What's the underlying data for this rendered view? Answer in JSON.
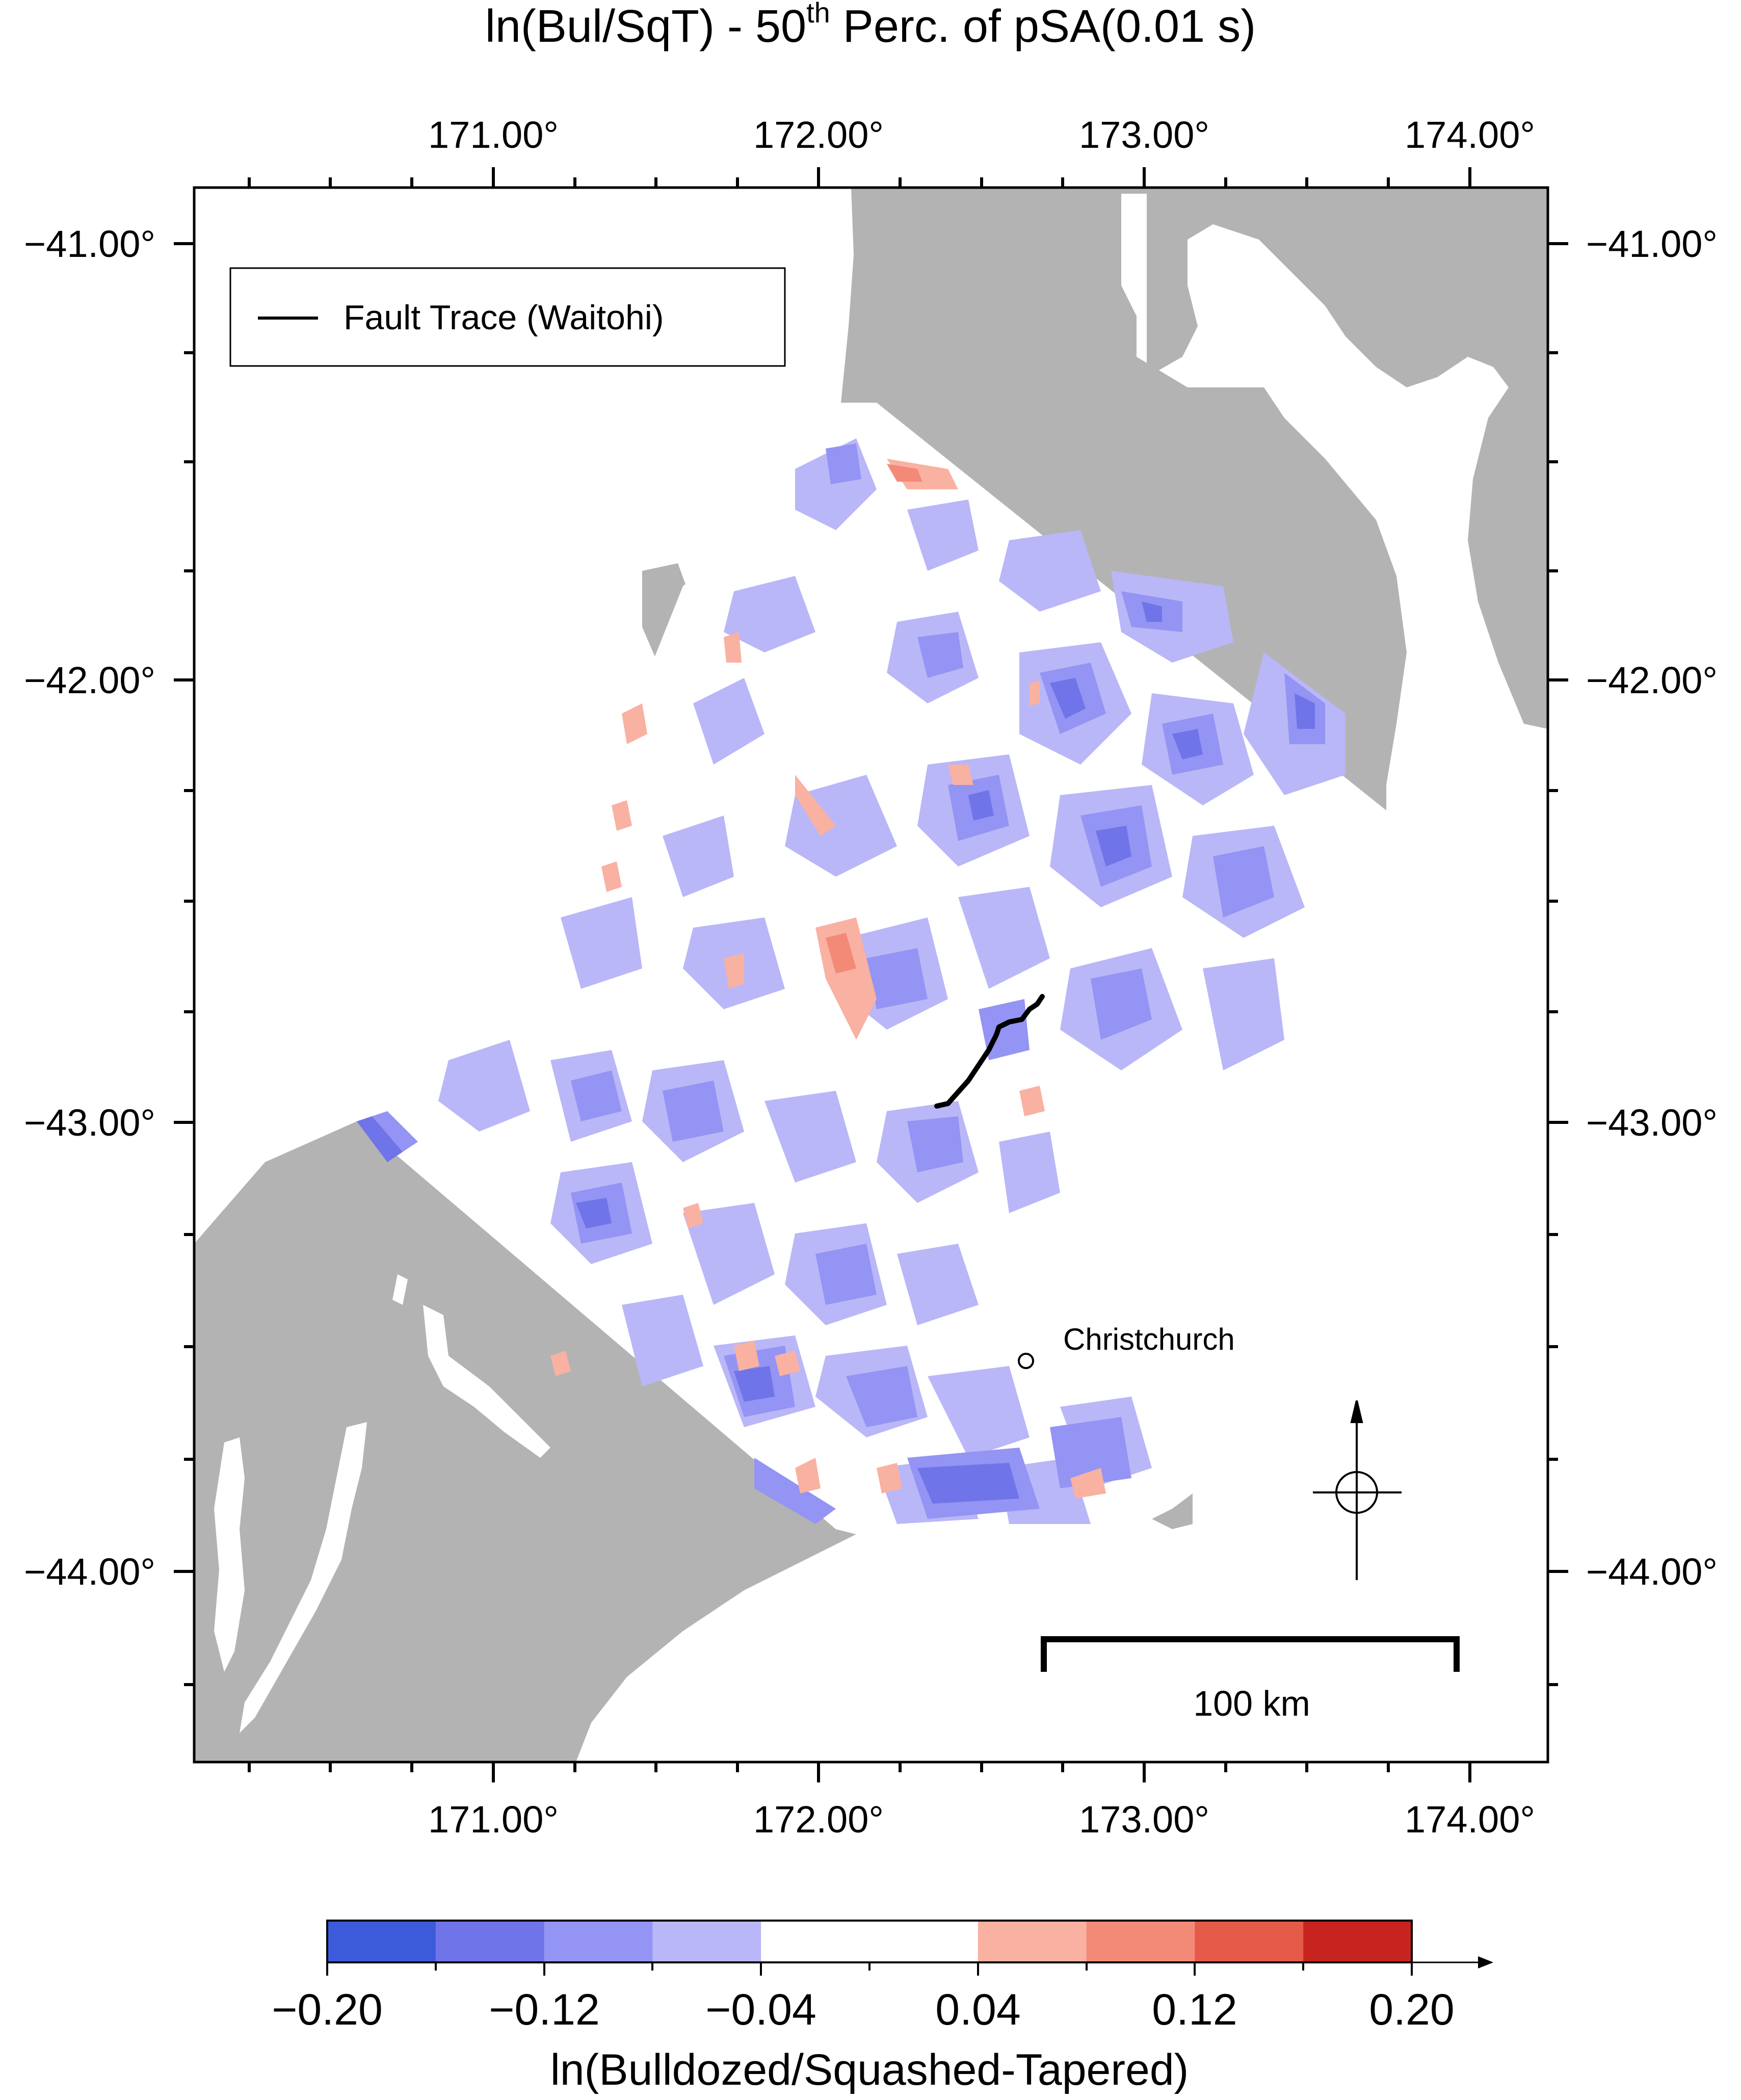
{
  "title": {
    "prefix": "ln(Bul/SqT)  - 50",
    "superscript": "th",
    "suffix": " Perc. of pSA(0.01 s)"
  },
  "axes": {
    "lon_labels": [
      "171.00°",
      "172.00°",
      "173.00°",
      "174.00°"
    ],
    "lat_labels": [
      "−41.00°",
      "−42.00°",
      "−43.00°",
      "−44.00°"
    ]
  },
  "legend": {
    "label": "Fault Trace (Waitohi)"
  },
  "city": {
    "label": "Christchurch"
  },
  "scale_bar": {
    "label": "100 km"
  },
  "colorbar": {
    "tick_labels": [
      "−0.20",
      "−0.12",
      "−0.04",
      "0.04",
      "0.12",
      "0.20"
    ],
    "label": "ln(Bulldozed/Squashed-Tapered)",
    "colors": [
      "#3b5bdb",
      "#6f74e8",
      "#9394f3",
      "#b9b7f7",
      "#ffffff",
      "#ffffff",
      "#f9b1a2",
      "#f38a77",
      "#e55a48",
      "#c8241f"
    ]
  },
  "colors": {
    "land": "#b3b3b3",
    "sea": "#ffffff",
    "fault": "#000000",
    "blue_light": "#b9b7f7",
    "blue_mid": "#9394f3",
    "blue_dark": "#6f74e8",
    "red_light": "#f9b1a2"
  }
}
